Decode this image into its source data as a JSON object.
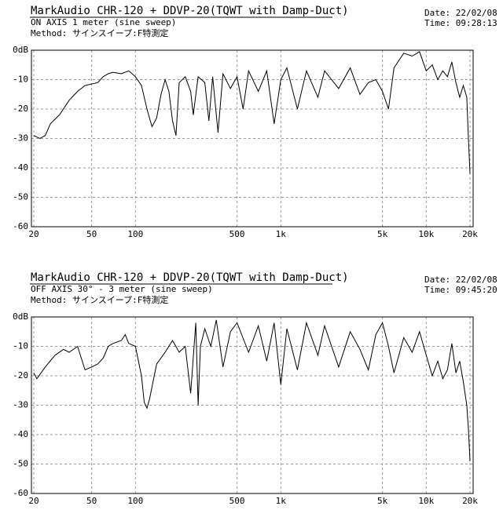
{
  "chart_data": [
    {
      "type": "line",
      "title": "MarkAudio CHR-120 + DDVP-20(TQWT with Damp-Duct)",
      "subtitle": "ON AXIS 1 meter (sine sweep)",
      "method": "Method: サインスイープ:F特測定",
      "date": "Date: 22/02/08",
      "time": "Time: 09:28:13",
      "x": [
        20,
        22,
        24,
        26,
        30,
        35,
        40,
        45,
        55,
        60,
        65,
        70,
        80,
        90,
        100,
        110,
        120,
        130,
        140,
        150,
        160,
        170,
        180,
        190,
        200,
        220,
        240,
        250,
        270,
        300,
        320,
        340,
        370,
        400,
        450,
        500,
        550,
        600,
        700,
        800,
        900,
        1000,
        1100,
        1300,
        1500,
        1800,
        2000,
        2500,
        3000,
        3500,
        4000,
        4500,
        5000,
        5500,
        6000,
        7000,
        8000,
        9000,
        10000,
        11000,
        12000,
        13000,
        14000,
        15000,
        16000,
        17000,
        18000,
        19000,
        19500,
        20000
      ],
      "values": [
        -29,
        -30,
        -29,
        -25,
        -22,
        -17,
        -14,
        -12,
        -11,
        -9,
        -8,
        -7.5,
        -8,
        -7,
        -9,
        -12,
        -20,
        -26,
        -23,
        -15,
        -10,
        -14,
        -24,
        -29,
        -11,
        -9,
        -14,
        -22,
        -9,
        -11,
        -24,
        -9,
        -28,
        -8,
        -13,
        -9,
        -20,
        -7,
        -14,
        -7,
        -25,
        -10,
        -6,
        -20,
        -7,
        -16,
        -7,
        -13,
        -6,
        -15,
        -11,
        -10,
        -14,
        -20,
        -6,
        -1,
        -2,
        -0.5,
        -7,
        -5,
        -10,
        -7,
        -9,
        -4,
        -11,
        -16,
        -12,
        -16,
        -30,
        -42
      ],
      "color": "#000000",
      "xscale": "log",
      "xlim": [
        20,
        20000
      ],
      "ylim": [
        -60,
        0
      ],
      "xticks": [
        20,
        50,
        100,
        500,
        {
          "value": 1000,
          "label": "1k"
        },
        {
          "value": 5000,
          "label": "5k"
        },
        {
          "value": 10000,
          "label": "10k"
        },
        {
          "value": 20000,
          "label": "20k"
        }
      ],
      "yticks": [
        {
          "value": 0,
          "label": "0dB"
        },
        -10,
        -20,
        -30,
        -40,
        -50,
        -60
      ],
      "grid": true
    },
    {
      "type": "line",
      "title": "MarkAudio CHR-120 + DDVP-20(TQWT with Damp-Duct)",
      "subtitle": "OFF AXIS 30° - 3 meter  (sine sweep)",
      "method": "Method: サインスイープ:F特測定",
      "date": "Date: 22/02/08",
      "time": "Time: 09:45:20",
      "x": [
        20,
        21,
        24,
        28,
        32,
        35,
        40,
        45,
        50,
        55,
        60,
        65,
        70,
        80,
        85,
        90,
        100,
        110,
        115,
        120,
        125,
        140,
        160,
        180,
        200,
        220,
        240,
        260,
        270,
        280,
        300,
        330,
        360,
        400,
        450,
        500,
        600,
        700,
        800,
        900,
        1000,
        1100,
        1300,
        1500,
        1800,
        2000,
        2500,
        3000,
        3500,
        4000,
        4500,
        5000,
        5500,
        6000,
        7000,
        8000,
        9000,
        10000,
        11000,
        12000,
        13000,
        14000,
        15000,
        16000,
        17000,
        18000,
        19000,
        19500,
        20000
      ],
      "values": [
        -19,
        -21,
        -17,
        -13,
        -11,
        -12,
        -10,
        -18,
        -17,
        -16,
        -14,
        -10,
        -9,
        -8,
        -6,
        -9,
        -10,
        -20,
        -29,
        -31,
        -28,
        -16,
        -12,
        -8,
        -12,
        -10,
        -26,
        -2,
        -30,
        -10,
        -4,
        -10,
        -1,
        -17,
        -5,
        -2,
        -12,
        -3,
        -15,
        -2,
        -23,
        -4,
        -18,
        -2,
        -13,
        -3,
        -17,
        -5,
        -11,
        -18,
        -6,
        -2,
        -10,
        -19,
        -7,
        -12,
        -5,
        -13,
        -20,
        -15,
        -21,
        -18,
        -9,
        -19,
        -15,
        -22,
        -30,
        -38,
        -49
      ],
      "color": "#000000",
      "xscale": "log",
      "xlim": [
        20,
        20000
      ],
      "ylim": [
        -60,
        0
      ],
      "xticks": [
        20,
        50,
        100,
        500,
        {
          "value": 1000,
          "label": "1k"
        },
        {
          "value": 5000,
          "label": "5k"
        },
        {
          "value": 10000,
          "label": "10k"
        },
        {
          "value": 20000,
          "label": "20k"
        }
      ],
      "yticks": [
        {
          "value": 0,
          "label": "0dB"
        },
        -10,
        -20,
        -30,
        -40,
        -50,
        -60
      ],
      "grid": true
    }
  ]
}
